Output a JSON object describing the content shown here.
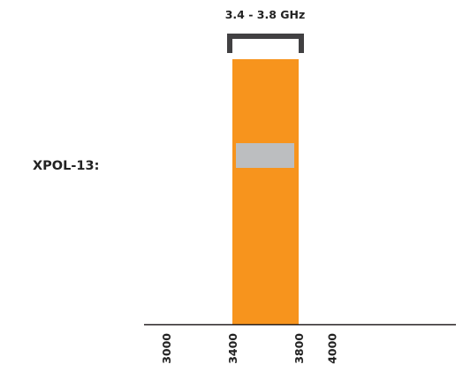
{
  "chart_data": {
    "type": "bar",
    "title": "",
    "xlabel": "",
    "ylabel": "",
    "xlim": [
      3000,
      4200
    ],
    "categories": [
      "XPOL-13:"
    ],
    "series": [
      {
        "label": "XPOL-13:",
        "band": {
          "start": 3400,
          "end": 3800,
          "color": "#f7941d"
        },
        "marker": {
          "color": "#bcbec0"
        }
      }
    ],
    "ticks": [
      {
        "value": 3000,
        "label": "3000"
      },
      {
        "value": 3400,
        "label": "3400"
      },
      {
        "value": 3800,
        "label": "3800"
      },
      {
        "value": 4000,
        "label": "4000"
      }
    ],
    "bracket": {
      "start": 3400,
      "end": 3800,
      "label": "3.4 - 3.8 GHz",
      "color": "#414042"
    },
    "axis_color": "#231f20"
  }
}
